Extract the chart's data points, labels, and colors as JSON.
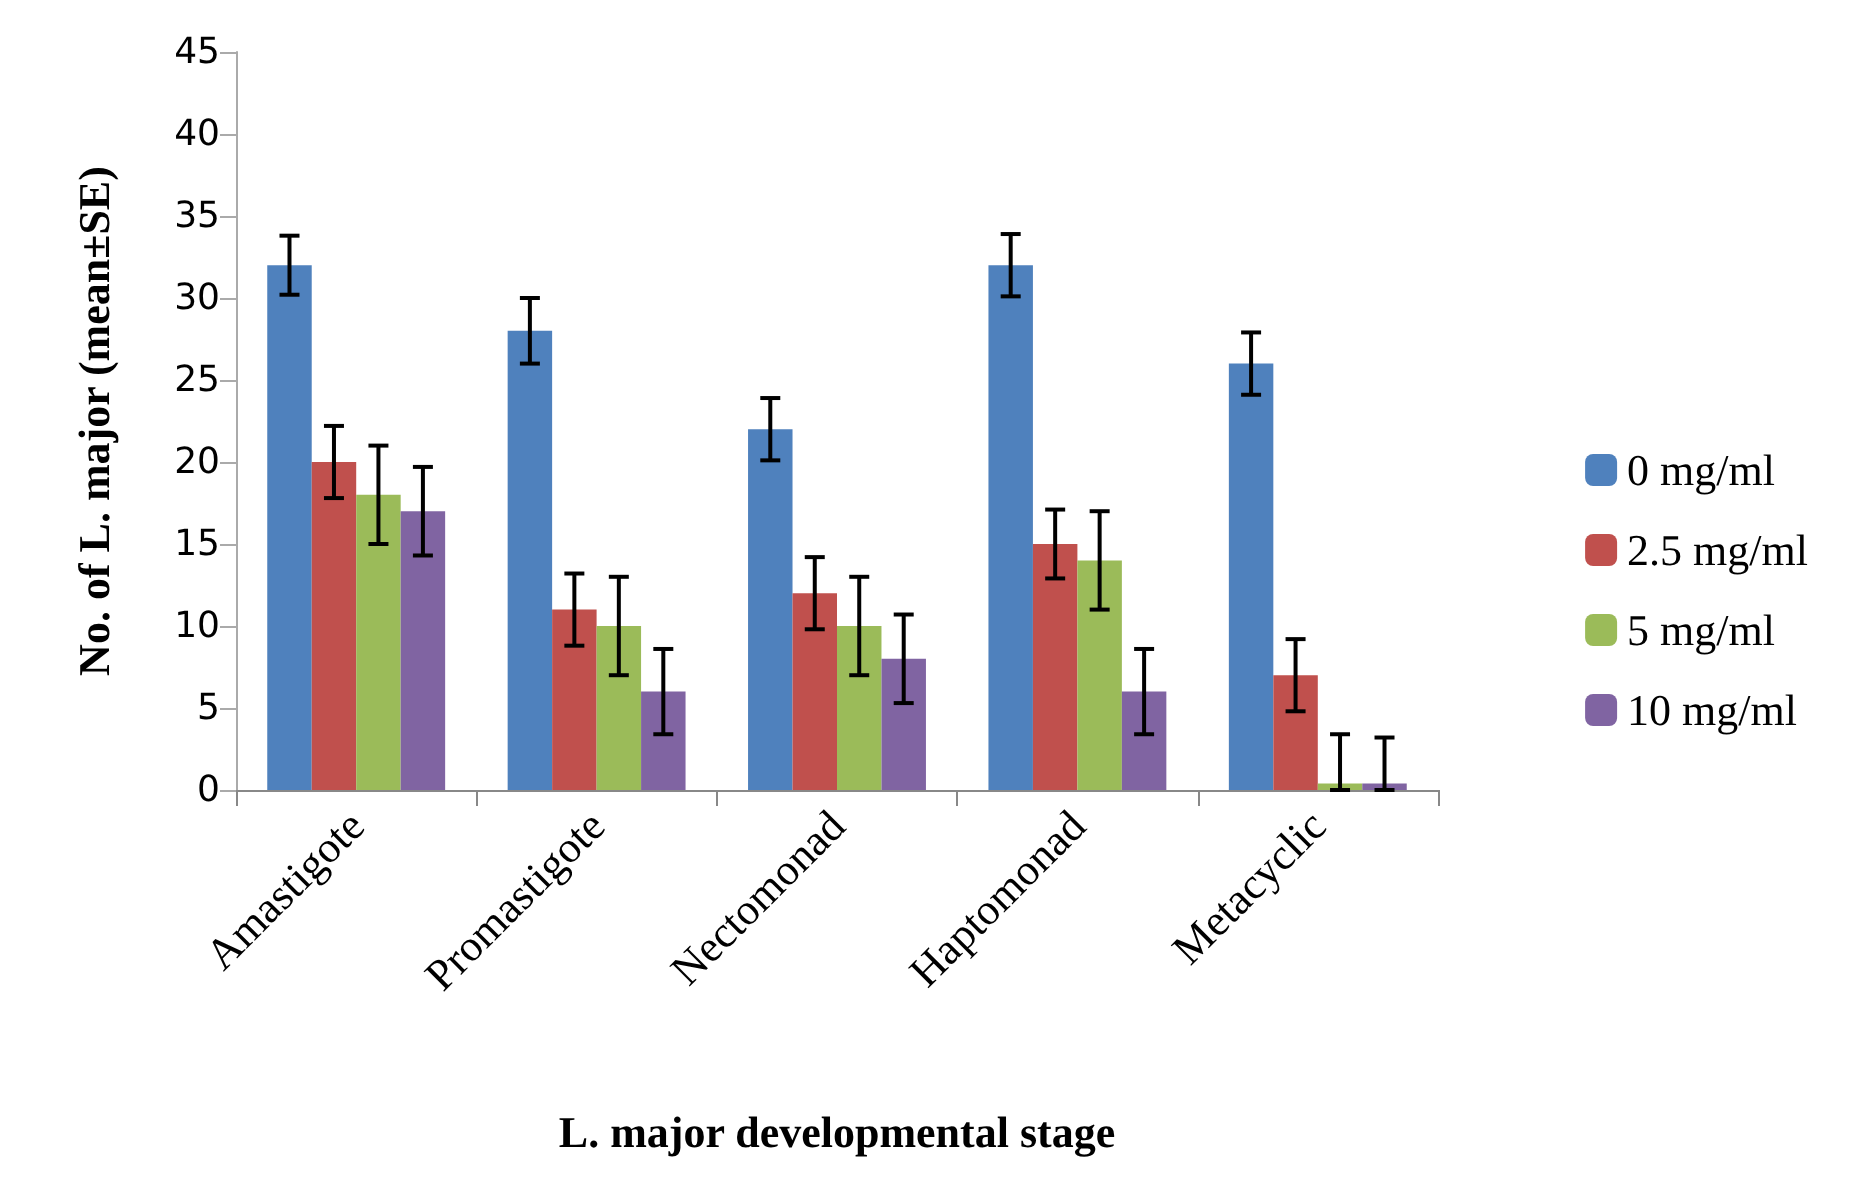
{
  "chart_data": {
    "type": "bar",
    "xlabel": "L. major developmental stage",
    "ylabel": "No. of L. major (mean±SE)",
    "categories": [
      "Amastigote",
      "Promastigote",
      "Nectomonad",
      "Haptomonad",
      "Metacyclic"
    ],
    "series": [
      {
        "name": "0 mg/ml",
        "color": "#4f81bd",
        "values": [
          32,
          28,
          22,
          32,
          26
        ],
        "errors": [
          1.8,
          2,
          1.9,
          1.9,
          1.9
        ]
      },
      {
        "name": "2.5 mg/ml",
        "color": "#c0504d",
        "values": [
          20,
          11,
          12,
          15,
          7
        ],
        "errors": [
          2.2,
          2.2,
          2.2,
          2.1,
          2.2
        ]
      },
      {
        "name": "5 mg/ml",
        "color": "#9bbb59",
        "values": [
          18,
          10,
          10,
          14,
          0.4
        ],
        "errors": [
          3,
          3,
          3,
          3,
          [
            0,
            3.4
          ]
        ]
      },
      {
        "name": "10 mg/ml",
        "color": "#8064a2",
        "values": [
          17,
          6,
          8,
          6,
          0.4
        ],
        "errors": [
          2.7,
          2.6,
          2.7,
          2.6,
          [
            0,
            3.2
          ]
        ]
      }
    ],
    "ylim": [
      0,
      45
    ],
    "yticks": [
      0,
      5,
      10,
      15,
      20,
      25,
      30,
      35,
      40,
      45
    ],
    "grid": false,
    "legend": "right"
  }
}
